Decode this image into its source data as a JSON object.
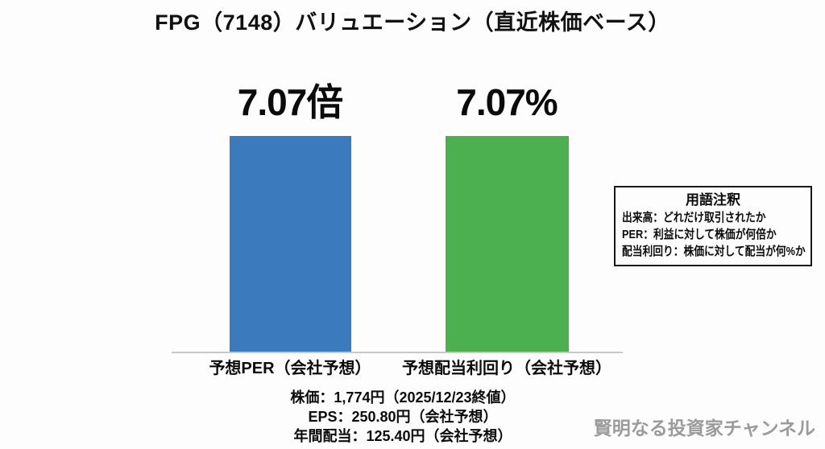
{
  "title": "FPG（7148）バリュエーション（直近株価ベース）",
  "chart_data": {
    "type": "bar",
    "categories": [
      "予想PER（会社予想）",
      "予想配当利回り（会社予想）"
    ],
    "values": [
      7.07,
      7.07
    ],
    "value_labels": [
      "7.07倍",
      "7.07%"
    ],
    "series": [
      {
        "name": "予想PER（会社予想）",
        "value": 7.07,
        "unit": "倍",
        "color": "#3a7abd"
      },
      {
        "name": "予想配当利回り（会社予想）",
        "value": 7.07,
        "unit": "%",
        "color": "#4cb050"
      }
    ],
    "title": "FPG（7148）バリュエーション（直近株価ベース）",
    "xlabel": "",
    "ylabel": "",
    "grid": false,
    "legend": false
  },
  "note_box": {
    "title": "用語注釈",
    "lines": [
      "出来高：どれだけ取引されたか",
      "PER：利益に対して株価が何倍か",
      "配当利回り：株価に対して配当が何%か"
    ]
  },
  "footer": {
    "lines": [
      "株価：1,774円（2025/12/23終値）",
      "EPS：250.80円（会社予想）",
      "年間配当：125.40円（会社予想）"
    ]
  },
  "watermark": "賢明なる投資家チャンネル",
  "colors": {
    "per_bar": "#3a7abd",
    "yield_bar": "#4cb050",
    "baseline": "#c8c8c8",
    "watermark": "#9b9b9b"
  }
}
